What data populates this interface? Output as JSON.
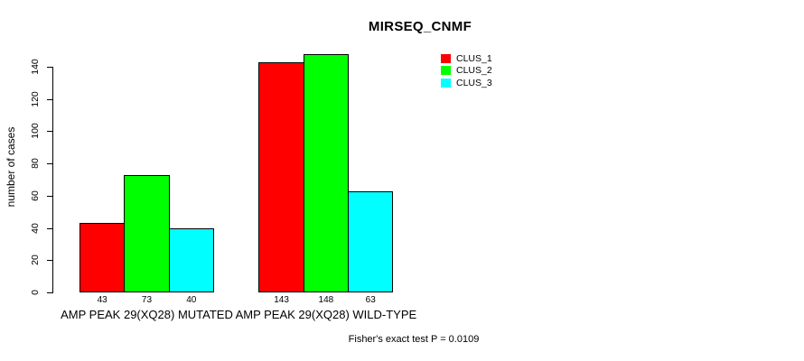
{
  "chart_data": {
    "type": "bar",
    "title": "MIRSEQ_CNMF",
    "ylabel": "number of cases",
    "ylim": [
      0,
      140
    ],
    "yticks": [
      "0",
      "20",
      "40",
      "60",
      "80",
      "100",
      "120",
      "140"
    ],
    "categories": [
      "AMP PEAK 29(XQ28) MUTATED",
      "AMP PEAK 29(XQ28) WILD-TYPE"
    ],
    "series": [
      {
        "name": "CLUS_1",
        "color": "#ff0000",
        "values": [
          43,
          143
        ]
      },
      {
        "name": "CLUS_2",
        "color": "#00ff00",
        "values": [
          73,
          148
        ]
      },
      {
        "name": "CLUS_3",
        "color": "#00ffff",
        "values": [
          40,
          63
        ]
      }
    ],
    "bar_value_labels": [
      [
        43,
        73,
        40
      ],
      [
        143,
        148,
        63
      ]
    ],
    "annotation": "Fisher's exact test P = 0.0109",
    "legend_position": "top-right",
    "grid": false,
    "background": "#ffffff",
    "text_color": "#000000",
    "bar_border_color": "#000000"
  }
}
